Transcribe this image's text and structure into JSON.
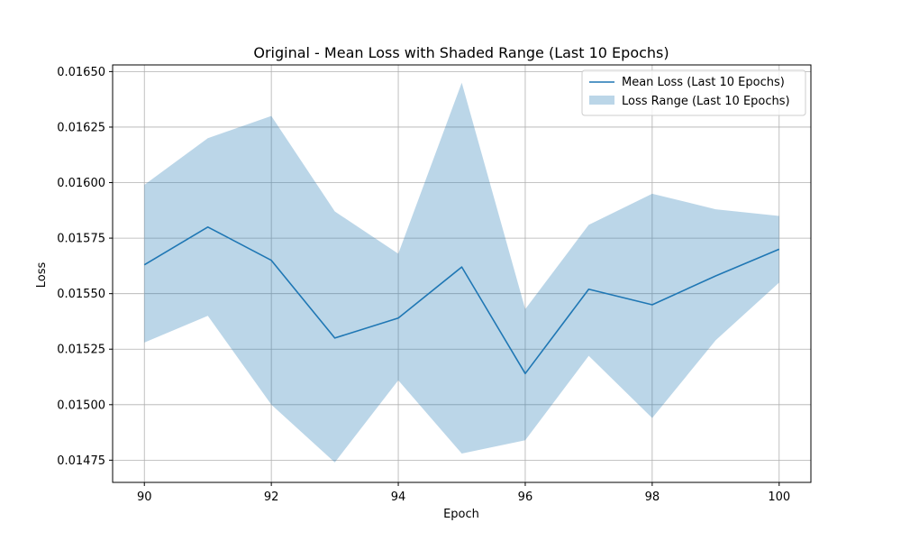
{
  "chart_data": {
    "type": "line",
    "title": "Original - Mean Loss with Shaded Range (Last 10 Epochs)",
    "xlabel": "Epoch",
    "ylabel": "Loss",
    "xlim": [
      89.5,
      100.5
    ],
    "ylim": [
      0.01465,
      0.01653
    ],
    "grid": true,
    "legend_placement": "top-right",
    "x_ticks": [
      90,
      92,
      94,
      96,
      98,
      100
    ],
    "y_ticks": [
      0.01475,
      0.015,
      0.01525,
      0.0155,
      0.01575,
      0.016,
      0.01625,
      0.0165
    ],
    "x_tick_labels": [
      "90",
      "92",
      "94",
      "96",
      "98",
      "100"
    ],
    "y_tick_labels": [
      "0.01475",
      "0.01500",
      "0.01525",
      "0.01550",
      "0.01575",
      "0.01600",
      "0.01625",
      "0.01650"
    ],
    "x": [
      90,
      91,
      92,
      93,
      94,
      95,
      96,
      97,
      98,
      99,
      100
    ],
    "series": [
      {
        "name": "Mean Loss (Last 10 Epochs)",
        "kind": "line",
        "color": "#1f77b4",
        "values": [
          0.01563,
          0.0158,
          0.01565,
          0.0153,
          0.01539,
          0.01562,
          0.01514,
          0.01552,
          0.01545,
          0.01558,
          0.0157
        ]
      },
      {
        "name": "Loss Range (Last 10 Epochs)",
        "kind": "band",
        "color": "#1f77b4",
        "opacity": 0.3,
        "lower": [
          0.01528,
          0.0154,
          0.015,
          0.01474,
          0.01511,
          0.01478,
          0.01484,
          0.01522,
          0.01494,
          0.01529,
          0.01555
        ],
        "upper": [
          0.01599,
          0.0162,
          0.0163,
          0.01587,
          0.01568,
          0.01645,
          0.01543,
          0.01581,
          0.01595,
          0.01588,
          0.01585
        ]
      }
    ]
  }
}
